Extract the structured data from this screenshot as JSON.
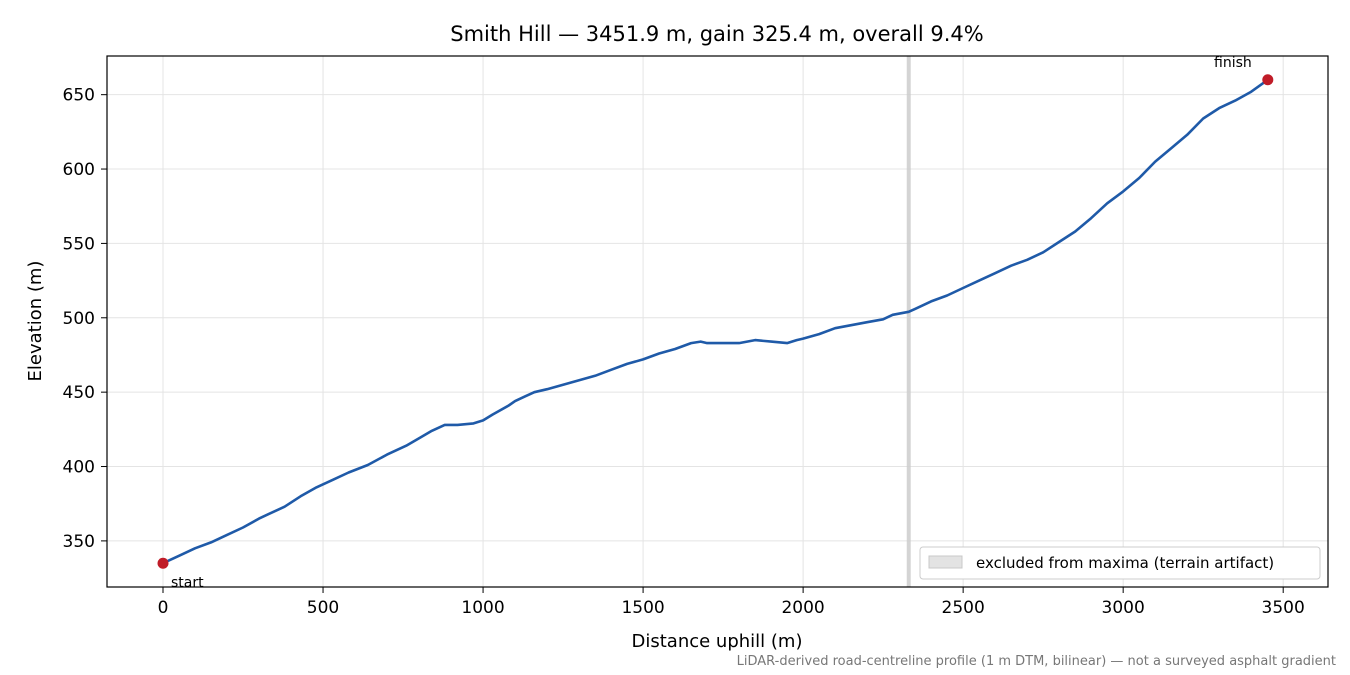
{
  "chart_data": {
    "type": "line",
    "title": "Smith Hill — 3451.9 m, gain 325.4 m, overall 9.4%",
    "xlabel": "Distance uphill (m)",
    "ylabel": "Elevation (m)",
    "xlim": [
      -175,
      3640
    ],
    "ylim": [
      319,
      676
    ],
    "xticks": [
      0,
      500,
      1000,
      1500,
      2000,
      2500,
      3000,
      3500
    ],
    "yticks": [
      350,
      400,
      450,
      500,
      550,
      600,
      650
    ],
    "xtick_labels": [
      "0",
      "500",
      "1000",
      "1500",
      "2000",
      "2500",
      "3000",
      "3500"
    ],
    "ytick_labels": [
      "350",
      "400",
      "450",
      "500",
      "550",
      "600",
      "650"
    ],
    "grid": true,
    "legend_position": "bottom-right",
    "series": [
      {
        "color": "#1f5aa8",
        "x": [
          0,
          50,
          100,
          150,
          200,
          250,
          300,
          330,
          380,
          430,
          480,
          530,
          580,
          640,
          700,
          760,
          800,
          840,
          880,
          920,
          970,
          1000,
          1030,
          1080,
          1100,
          1130,
          1160,
          1200,
          1250,
          1300,
          1350,
          1400,
          1450,
          1500,
          1550,
          1600,
          1650,
          1680,
          1700,
          1750,
          1800,
          1850,
          1900,
          1950,
          1980,
          2000,
          2050,
          2100,
          2150,
          2200,
          2250,
          2280,
          2330,
          2350,
          2400,
          2450,
          2500,
          2550,
          2600,
          2650,
          2700,
          2750,
          2800,
          2850,
          2900,
          2950,
          3000,
          3050,
          3100,
          3150,
          3200,
          3250,
          3300,
          3350,
          3400,
          3451.9
        ],
        "y": [
          335,
          340,
          345,
          349,
          354,
          359,
          365,
          368,
          373,
          380,
          386,
          391,
          396,
          401,
          408,
          414,
          419,
          424,
          428,
          428,
          429,
          431,
          435,
          441,
          444,
          447,
          450,
          452,
          455,
          458,
          461,
          465,
          469,
          472,
          476,
          479,
          483,
          484,
          483,
          483,
          483,
          485,
          484,
          483,
          485,
          486,
          489,
          493,
          495,
          497,
          499,
          502,
          504,
          506,
          511,
          515,
          520,
          525,
          530,
          535,
          539,
          544,
          551,
          558,
          567,
          577,
          585,
          594,
          605,
          614,
          623,
          634,
          641,
          646,
          652,
          660
        ]
      }
    ],
    "markers": [
      {
        "x": 0,
        "y": 335,
        "label": "start",
        "color": "#c01c28"
      },
      {
        "x": 3451.9,
        "y": 660,
        "label": "finish",
        "color": "#c01c28"
      }
    ],
    "excluded_zone": {
      "x": 2330,
      "label": "excluded from maxima (terrain artifact)",
      "color": "#cccccc"
    },
    "footnote": "LiDAR-derived road-centreline profile (1 m DTM, bilinear) — not a surveyed asphalt gradient"
  }
}
